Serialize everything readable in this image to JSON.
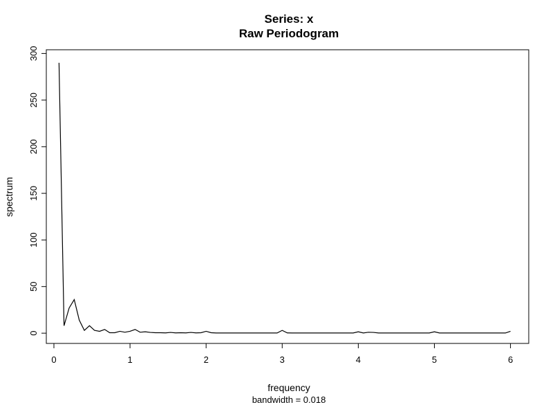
{
  "chart_data": {
    "type": "line",
    "title": "Series: x",
    "subtitle": "Raw Periodogram",
    "xlabel": "frequency",
    "x_sublabel": "bandwidth = 0.018",
    "ylabel": "spectrum",
    "xlim": [
      -0.1,
      6.24
    ],
    "ylim": [
      -11,
      304
    ],
    "x_ticks": [
      0,
      1,
      2,
      3,
      4,
      5,
      6
    ],
    "y_ticks": [
      0,
      50,
      100,
      150,
      200,
      250,
      300
    ],
    "line_color": "#000000",
    "grid": false,
    "series": [
      {
        "x": [
          0.067,
          0.133,
          0.2,
          0.267,
          0.333,
          0.4,
          0.467,
          0.533,
          0.6,
          0.667,
          0.733,
          0.8,
          0.867,
          0.933,
          1.0,
          1.067,
          1.133,
          1.2,
          1.267,
          1.333,
          1.4,
          1.467,
          1.533,
          1.6,
          1.667,
          1.733,
          1.8,
          1.867,
          1.933,
          2.0,
          2.067,
          2.133,
          2.2,
          2.267,
          2.333,
          2.4,
          2.467,
          2.533,
          2.6,
          2.667,
          2.733,
          2.8,
          2.867,
          2.933,
          3.0,
          3.067,
          3.133,
          3.2,
          3.267,
          3.333,
          3.4,
          3.467,
          3.533,
          3.6,
          3.667,
          3.733,
          3.8,
          3.867,
          3.933,
          4.0,
          4.067,
          4.133,
          4.2,
          4.267,
          4.333,
          4.4,
          4.467,
          4.533,
          4.6,
          4.667,
          4.733,
          4.8,
          4.867,
          4.933,
          5.0,
          5.067,
          5.133,
          5.2,
          5.267,
          5.333,
          5.4,
          5.467,
          5.533,
          5.6,
          5.667,
          5.733,
          5.8,
          5.867,
          5.933,
          6.0
        ],
        "values": [
          290,
          8,
          27,
          36,
          14,
          3,
          8,
          3,
          2,
          4,
          0.5,
          0.5,
          2,
          1,
          2,
          4,
          1,
          1.5,
          0.8,
          0.5,
          0.5,
          0.3,
          0.8,
          0.3,
          0.5,
          0.3,
          0.8,
          0.3,
          0.5,
          2,
          0.5,
          0.2,
          0.2,
          0.2,
          0.2,
          0.2,
          0.2,
          0.2,
          0.2,
          0.2,
          0.2,
          0.2,
          0.2,
          0.2,
          3,
          0.3,
          0.2,
          0.2,
          0.2,
          0.2,
          0.2,
          0.2,
          0.2,
          0.2,
          0.2,
          0.2,
          0.2,
          0.2,
          0.2,
          1.5,
          0.2,
          1,
          0.8,
          0.2,
          0.2,
          0.2,
          0.2,
          0.2,
          0.2,
          0.2,
          0.2,
          0.2,
          0.2,
          0.2,
          1.5,
          0.2,
          0.2,
          0.2,
          0.2,
          0.2,
          0.2,
          0.2,
          0.2,
          0.2,
          0.2,
          0.2,
          0.2,
          0.2,
          0.2,
          2
        ]
      }
    ]
  }
}
